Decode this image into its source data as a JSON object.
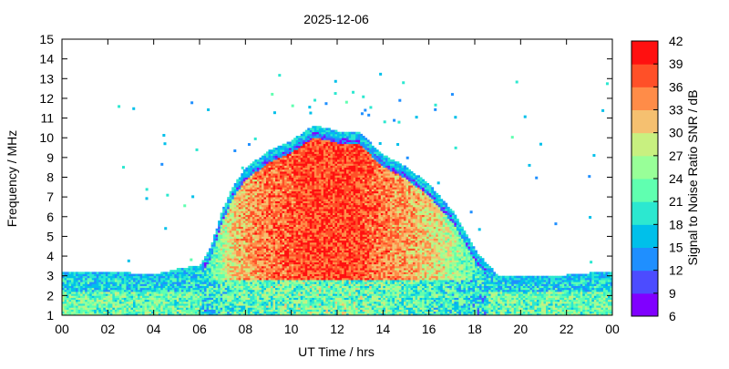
{
  "chart_data": {
    "type": "heatmap",
    "title": "2025-12-06",
    "xlabel": "UT Time / hrs",
    "ylabel": "Frequency / MHz",
    "colorbar_label": "Signal to Noise Ratio SNR / dB",
    "xlim": [
      0,
      24
    ],
    "ylim": [
      1,
      15
    ],
    "x_ticks": [
      "00",
      "02",
      "04",
      "06",
      "08",
      "10",
      "12",
      "14",
      "16",
      "18",
      "20",
      "22",
      "00"
    ],
    "y_ticks": [
      "1",
      "2",
      "3",
      "4",
      "5",
      "6",
      "7",
      "8",
      "9",
      "10",
      "11",
      "12",
      "13",
      "14",
      "15"
    ],
    "colorbar_ticks": [
      "6",
      "9",
      "12",
      "15",
      "18",
      "21",
      "24",
      "27",
      "30",
      "33",
      "36",
      "39",
      "42"
    ],
    "colorbar_range": [
      6,
      42
    ],
    "colorbar_colors": [
      "#8000ff",
      "#4c4cff",
      "#1f8fff",
      "#00c0ea",
      "#2ce8d0",
      "#60ffb0",
      "#98ff98",
      "#c8f080",
      "#f5c070",
      "#ff8c48",
      "#ff5028",
      "#ff1010"
    ],
    "envelope": {
      "description_hours": [
        0,
        2,
        4,
        5,
        6,
        6.5,
        7,
        7.5,
        8,
        9,
        10,
        11,
        12,
        13,
        14,
        15,
        16,
        17,
        18,
        18.5,
        19,
        20,
        22,
        24
      ],
      "max_freq_mhz": [
        3.2,
        3.2,
        3.0,
        3.3,
        3.5,
        4.5,
        6.3,
        7.6,
        8.4,
        9.3,
        9.8,
        10.6,
        10.3,
        10.2,
        9.1,
        8.5,
        7.6,
        6.3,
        4.3,
        3.6,
        3.0,
        2.9,
        3.0,
        3.2
      ]
    }
  }
}
